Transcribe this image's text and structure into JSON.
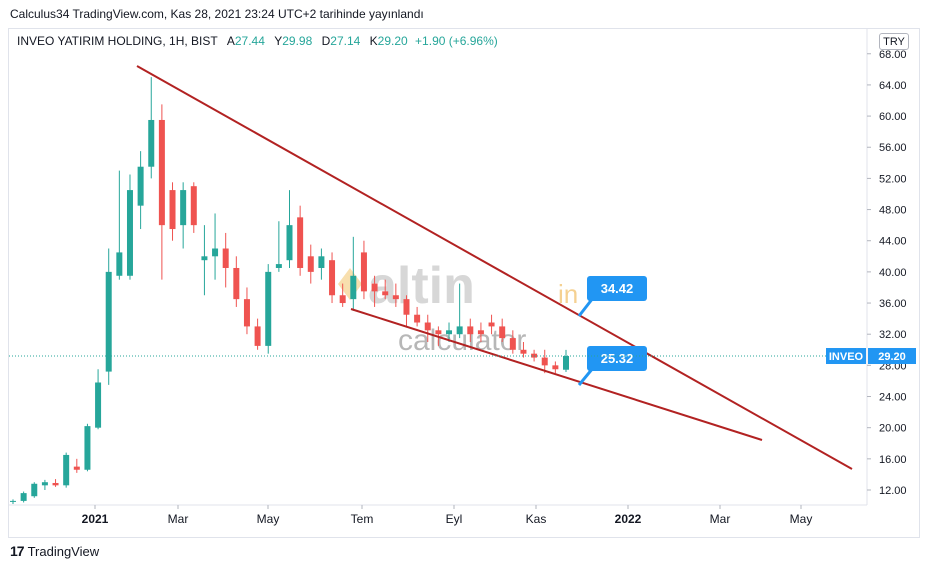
{
  "header": {
    "published": "Calculus34 TradingView.com, Kas 28, 2021 23:24 UTC+2 tarihinde yayınlandı"
  },
  "legend": {
    "symbol": "INVEO YATIRIM HOLDING, 1H, BIST",
    "open_label": "A",
    "open": "27.44",
    "high_label": "Y",
    "high": "29.98",
    "low_label": "D",
    "low": "27.14",
    "close_label": "K",
    "close": "29.20",
    "change": "+1.90 (+6.96%)"
  },
  "currency": "TRY",
  "watermark": {
    "brand": "altin",
    "suffix": "in",
    "sub": "calculator"
  },
  "footer": {
    "logo": "17",
    "brand": "TradingView"
  },
  "colors": {
    "up": "#26a69a",
    "down": "#ef5350",
    "trend": "#b22222",
    "label_bg": "#2196f3",
    "price_tag": "#2196f3"
  },
  "chart_data": {
    "type": "candlestick",
    "ylim": [
      10,
      68
    ],
    "y_ticks": [
      "12.00",
      "16.00",
      "20.00",
      "24.00",
      "28.00",
      "32.00",
      "36.00",
      "40.00",
      "44.00",
      "48.00",
      "52.00",
      "56.00",
      "60.00",
      "64.00",
      "68.00"
    ],
    "x_ticks": [
      "2021",
      "Mar",
      "May",
      "Tem",
      "Eyl",
      "Kas",
      "2022",
      "Mar",
      "May"
    ],
    "last_price": {
      "symbol": "INVEO",
      "value": "29.20"
    },
    "annotations": [
      {
        "text": "34.42",
        "value": 34.42
      },
      {
        "text": "25.32",
        "value": 25.32
      }
    ],
    "candles": [
      {
        "o": 10.5,
        "h": 10.8,
        "l": 10.2,
        "c": 10.6
      },
      {
        "o": 10.6,
        "h": 11.8,
        "l": 10.4,
        "c": 11.6
      },
      {
        "o": 11.2,
        "h": 13.0,
        "l": 11.0,
        "c": 12.8
      },
      {
        "o": 12.6,
        "h": 13.3,
        "l": 12.0,
        "c": 13.0
      },
      {
        "o": 12.9,
        "h": 13.4,
        "l": 12.4,
        "c": 12.6
      },
      {
        "o": 12.6,
        "h": 16.8,
        "l": 12.3,
        "c": 16.5
      },
      {
        "o": 15.0,
        "h": 16.0,
        "l": 14.2,
        "c": 14.6
      },
      {
        "o": 14.6,
        "h": 20.5,
        "l": 14.4,
        "c": 20.2
      },
      {
        "o": 20.0,
        "h": 27.5,
        "l": 19.8,
        "c": 25.8
      },
      {
        "o": 27.2,
        "h": 43.0,
        "l": 25.5,
        "c": 40.0
      },
      {
        "o": 39.5,
        "h": 53.0,
        "l": 39.0,
        "c": 42.5
      },
      {
        "o": 39.5,
        "h": 52.5,
        "l": 39.0,
        "c": 50.5
      },
      {
        "o": 48.5,
        "h": 55.5,
        "l": 45.5,
        "c": 53.5
      },
      {
        "o": 53.5,
        "h": 65.0,
        "l": 52.0,
        "c": 59.5
      },
      {
        "o": 59.5,
        "h": 61.5,
        "l": 39.0,
        "c": 46.0
      },
      {
        "o": 50.5,
        "h": 51.5,
        "l": 44.0,
        "c": 45.5
      },
      {
        "o": 46.0,
        "h": 51.5,
        "l": 43.0,
        "c": 50.5
      },
      {
        "o": 51.0,
        "h": 51.5,
        "l": 45.0,
        "c": 46.0
      },
      {
        "o": 41.5,
        "h": 46.0,
        "l": 37.0,
        "c": 42.0
      },
      {
        "o": 42.0,
        "h": 47.5,
        "l": 39.0,
        "c": 43.0
      },
      {
        "o": 43.0,
        "h": 45.0,
        "l": 38.0,
        "c": 40.5
      },
      {
        "o": 40.5,
        "h": 42.0,
        "l": 35.5,
        "c": 36.5
      },
      {
        "o": 36.5,
        "h": 38.0,
        "l": 32.0,
        "c": 33.0
      },
      {
        "o": 33.0,
        "h": 34.0,
        "l": 30.0,
        "c": 30.5
      },
      {
        "o": 30.5,
        "h": 41.0,
        "l": 29.5,
        "c": 40.0
      },
      {
        "o": 40.5,
        "h": 46.5,
        "l": 40.0,
        "c": 41.0
      },
      {
        "o": 41.5,
        "h": 50.5,
        "l": 40.5,
        "c": 46.0
      },
      {
        "o": 47.0,
        "h": 48.5,
        "l": 39.5,
        "c": 40.5
      },
      {
        "o": 42.0,
        "h": 43.5,
        "l": 38.5,
        "c": 40.0
      },
      {
        "o": 40.5,
        "h": 43.0,
        "l": 39.0,
        "c": 42.0
      },
      {
        "o": 41.5,
        "h": 42.5,
        "l": 36.0,
        "c": 37.0
      },
      {
        "o": 37.0,
        "h": 38.5,
        "l": 35.5,
        "c": 36.0
      },
      {
        "o": 36.5,
        "h": 44.5,
        "l": 35.0,
        "c": 39.5
      },
      {
        "o": 42.5,
        "h": 44.0,
        "l": 36.5,
        "c": 37.5
      },
      {
        "o": 38.5,
        "h": 39.5,
        "l": 35.5,
        "c": 37.5
      },
      {
        "o": 37.5,
        "h": 39.0,
        "l": 36.5,
        "c": 37.0
      },
      {
        "o": 37.0,
        "h": 38.5,
        "l": 35.5,
        "c": 36.5
      },
      {
        "o": 36.5,
        "h": 37.0,
        "l": 33.0,
        "c": 34.5
      },
      {
        "o": 34.5,
        "h": 35.5,
        "l": 33.0,
        "c": 33.5
      },
      {
        "o": 33.5,
        "h": 34.5,
        "l": 31.0,
        "c": 32.5
      },
      {
        "o": 32.5,
        "h": 33.0,
        "l": 30.5,
        "c": 32.0
      },
      {
        "o": 32.0,
        "h": 33.5,
        "l": 31.0,
        "c": 32.5
      },
      {
        "o": 32.0,
        "h": 38.5,
        "l": 31.5,
        "c": 33.0
      },
      {
        "o": 33.0,
        "h": 34.0,
        "l": 31.0,
        "c": 32.0
      },
      {
        "o": 32.5,
        "h": 33.5,
        "l": 31.0,
        "c": 32.0
      },
      {
        "o": 33.5,
        "h": 34.5,
        "l": 32.0,
        "c": 33.0
      },
      {
        "o": 33.0,
        "h": 34.0,
        "l": 31.0,
        "c": 31.5
      },
      {
        "o": 31.5,
        "h": 32.5,
        "l": 29.5,
        "c": 30.0
      },
      {
        "o": 30.0,
        "h": 31.0,
        "l": 29.0,
        "c": 29.5
      },
      {
        "o": 29.5,
        "h": 30.0,
        "l": 28.5,
        "c": 29.0
      },
      {
        "o": 29.0,
        "h": 30.0,
        "l": 27.0,
        "c": 28.0
      },
      {
        "o": 28.0,
        "h": 28.5,
        "l": 27.0,
        "c": 27.5
      },
      {
        "o": 27.44,
        "h": 29.98,
        "l": 27.14,
        "c": 29.2
      }
    ]
  }
}
